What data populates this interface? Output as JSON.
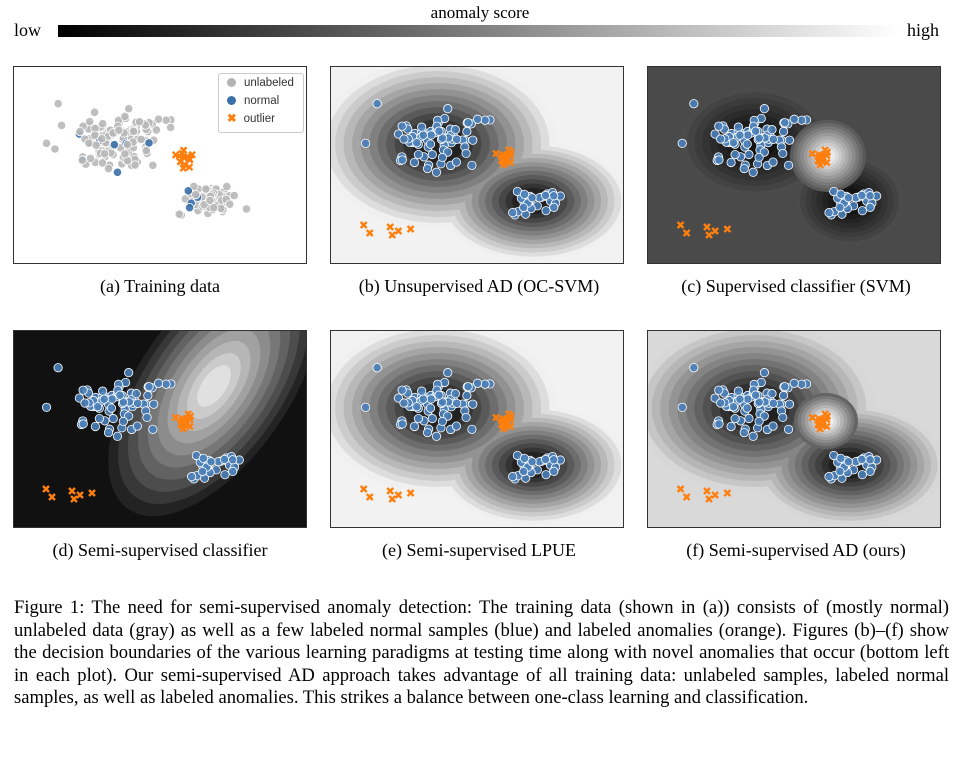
{
  "colorbar": {
    "title": "anomaly score",
    "low": "low",
    "high": "high"
  },
  "legend": {
    "items": [
      {
        "label": "unlabeled",
        "color": "#b3b3b3",
        "marker": "circle"
      },
      {
        "label": "normal",
        "color": "#3a6fa8",
        "marker": "circle"
      },
      {
        "label": "outlier",
        "color": "#ff7f0e",
        "marker": "x"
      }
    ]
  },
  "panels": [
    {
      "id": "a",
      "caption": "(a)  Training data",
      "background": "#ffffff"
    },
    {
      "id": "b",
      "caption": "(b)  Unsupervised AD (OC-SVM)",
      "background": "#f2f2f2"
    },
    {
      "id": "c",
      "caption": "(c)  Supervised classifier (SVM)",
      "background": "#4a4a4a"
    },
    {
      "id": "d",
      "caption": "(d)  Semi-supervised classifier",
      "background": "#111111"
    },
    {
      "id": "e",
      "caption": "(e)  Semi-supervised LPUE",
      "background": "#f2f2f2"
    },
    {
      "id": "f",
      "caption": "(f)  Semi-supervised AD (ours)",
      "background": "#d9d9d9"
    }
  ],
  "caption": "Figure 1: The need for semi-supervised anomaly detection: The training data (shown in (a)) consists of (mostly normal) unlabeled data (gray) as well as a few labeled normal samples (blue) and labeled anomalies (orange). Figures (b)–(f) show the decision boundaries of the various learning paradigms at testing time along with novel anomalies that occur (bottom left in each plot). Our semi-supervised AD approach takes advantage of all training data: unlabeled samples, labeled normal samples, as well as labeled anomalies. This strikes a balance between one-class learning and classification."
}
